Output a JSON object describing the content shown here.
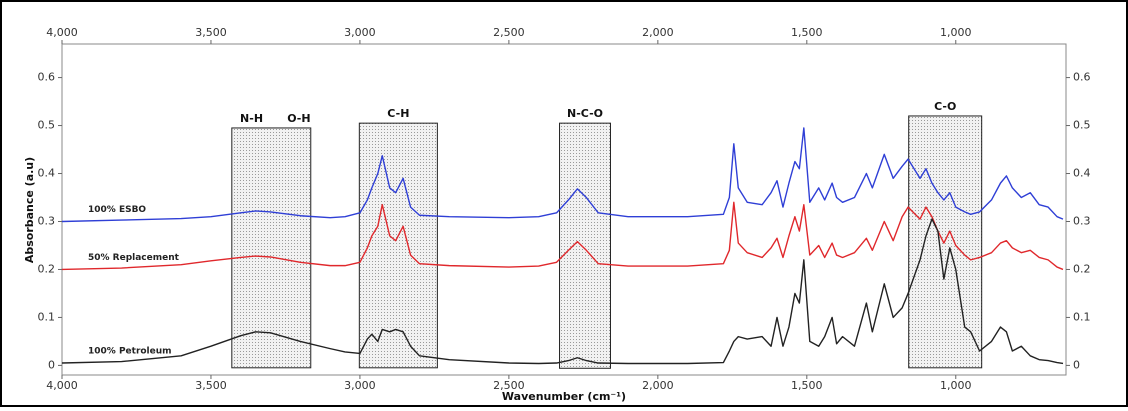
{
  "chart_data": {
    "type": "line",
    "x_label": "Wavenumber (cm⁻¹)",
    "y_label": "Absorbance (a.u)",
    "xlim": [
      4000,
      630
    ],
    "ylim": [
      -0.02,
      0.67
    ],
    "grid": false,
    "xticks": [
      {
        "value": 4000,
        "label": "4,000"
      },
      {
        "value": 3500,
        "label": "3,500"
      },
      {
        "value": 3000,
        "label": "3,000"
      },
      {
        "value": 2500,
        "label": "2,500"
      },
      {
        "value": 2000,
        "label": "2,000"
      },
      {
        "value": 1500,
        "label": "1,500"
      },
      {
        "value": 1000,
        "label": "1,000"
      }
    ],
    "yticks": [
      0,
      0.1,
      0.2,
      0.3,
      0.4,
      0.5,
      0.6
    ],
    "x": [
      4000,
      3800,
      3600,
      3500,
      3400,
      3350,
      3300,
      3200,
      3100,
      3050,
      3000,
      2975,
      2960,
      2940,
      2925,
      2900,
      2880,
      2855,
      2830,
      2800,
      2700,
      2500,
      2400,
      2340,
      2300,
      2270,
      2240,
      2200,
      2100,
      1900,
      1780,
      1760,
      1745,
      1730,
      1700,
      1650,
      1620,
      1600,
      1580,
      1560,
      1540,
      1525,
      1510,
      1490,
      1460,
      1440,
      1415,
      1400,
      1380,
      1340,
      1300,
      1280,
      1240,
      1210,
      1180,
      1160,
      1120,
      1100,
      1080,
      1060,
      1040,
      1020,
      1000,
      970,
      950,
      920,
      880,
      850,
      830,
      810,
      780,
      750,
      720,
      690,
      660,
      640
    ],
    "series": [
      {
        "name": "100% ESBO",
        "color": "#2f3fd6",
        "values": [
          0.3,
          0.303,
          0.306,
          0.31,
          0.318,
          0.322,
          0.32,
          0.312,
          0.308,
          0.31,
          0.318,
          0.345,
          0.37,
          0.4,
          0.437,
          0.37,
          0.36,
          0.39,
          0.33,
          0.313,
          0.31,
          0.308,
          0.31,
          0.318,
          0.345,
          0.368,
          0.35,
          0.318,
          0.31,
          0.31,
          0.315,
          0.35,
          0.462,
          0.37,
          0.34,
          0.335,
          0.36,
          0.385,
          0.33,
          0.38,
          0.425,
          0.41,
          0.495,
          0.34,
          0.37,
          0.345,
          0.38,
          0.35,
          0.34,
          0.35,
          0.4,
          0.37,
          0.44,
          0.39,
          0.415,
          0.43,
          0.39,
          0.41,
          0.38,
          0.36,
          0.345,
          0.36,
          0.33,
          0.32,
          0.315,
          0.32,
          0.345,
          0.38,
          0.395,
          0.37,
          0.35,
          0.36,
          0.335,
          0.33,
          0.31,
          0.305
        ]
      },
      {
        "name": "50% Replacement",
        "color": "#e0282c",
        "values": [
          0.2,
          0.203,
          0.21,
          0.218,
          0.225,
          0.228,
          0.226,
          0.215,
          0.208,
          0.208,
          0.215,
          0.245,
          0.27,
          0.29,
          0.335,
          0.27,
          0.26,
          0.29,
          0.23,
          0.212,
          0.208,
          0.205,
          0.207,
          0.215,
          0.24,
          0.258,
          0.24,
          0.212,
          0.207,
          0.207,
          0.212,
          0.24,
          0.34,
          0.255,
          0.235,
          0.225,
          0.245,
          0.265,
          0.225,
          0.27,
          0.31,
          0.28,
          0.335,
          0.23,
          0.25,
          0.225,
          0.255,
          0.23,
          0.225,
          0.235,
          0.265,
          0.24,
          0.3,
          0.26,
          0.31,
          0.33,
          0.305,
          0.33,
          0.31,
          0.28,
          0.255,
          0.28,
          0.25,
          0.23,
          0.22,
          0.225,
          0.235,
          0.255,
          0.26,
          0.245,
          0.235,
          0.24,
          0.225,
          0.22,
          0.205,
          0.2
        ]
      },
      {
        "name": "100% Petroleum",
        "color": "#222222",
        "values": [
          0.005,
          0.008,
          0.02,
          0.04,
          0.062,
          0.07,
          0.068,
          0.05,
          0.035,
          0.028,
          0.025,
          0.055,
          0.065,
          0.05,
          0.075,
          0.07,
          0.075,
          0.07,
          0.04,
          0.02,
          0.012,
          0.005,
          0.004,
          0.005,
          0.01,
          0.016,
          0.01,
          0.005,
          0.004,
          0.004,
          0.006,
          0.03,
          0.05,
          0.06,
          0.055,
          0.06,
          0.04,
          0.1,
          0.04,
          0.08,
          0.15,
          0.13,
          0.22,
          0.05,
          0.04,
          0.06,
          0.1,
          0.045,
          0.06,
          0.04,
          0.13,
          0.07,
          0.17,
          0.1,
          0.12,
          0.15,
          0.22,
          0.27,
          0.305,
          0.28,
          0.18,
          0.245,
          0.2,
          0.08,
          0.07,
          0.03,
          0.05,
          0.08,
          0.07,
          0.03,
          0.04,
          0.02,
          0.012,
          0.01,
          0.006,
          0.004
        ]
      }
    ],
    "regions": [
      {
        "labels": [
          "N-H",
          "O-H"
        ],
        "x": [
          3430,
          3165
        ],
        "y": [
          -0.005,
          0.495
        ]
      },
      {
        "labels": [
          "C-H"
        ],
        "x": [
          3002,
          2740
        ],
        "y": [
          -0.005,
          0.505
        ]
      },
      {
        "labels": [
          "N-C-O"
        ],
        "x": [
          2330,
          2159
        ],
        "y": [
          -0.006,
          0.505
        ]
      },
      {
        "labels": [
          "C-O"
        ],
        "x": [
          1158,
          913
        ],
        "y": [
          -0.005,
          0.52
        ]
      }
    ]
  }
}
